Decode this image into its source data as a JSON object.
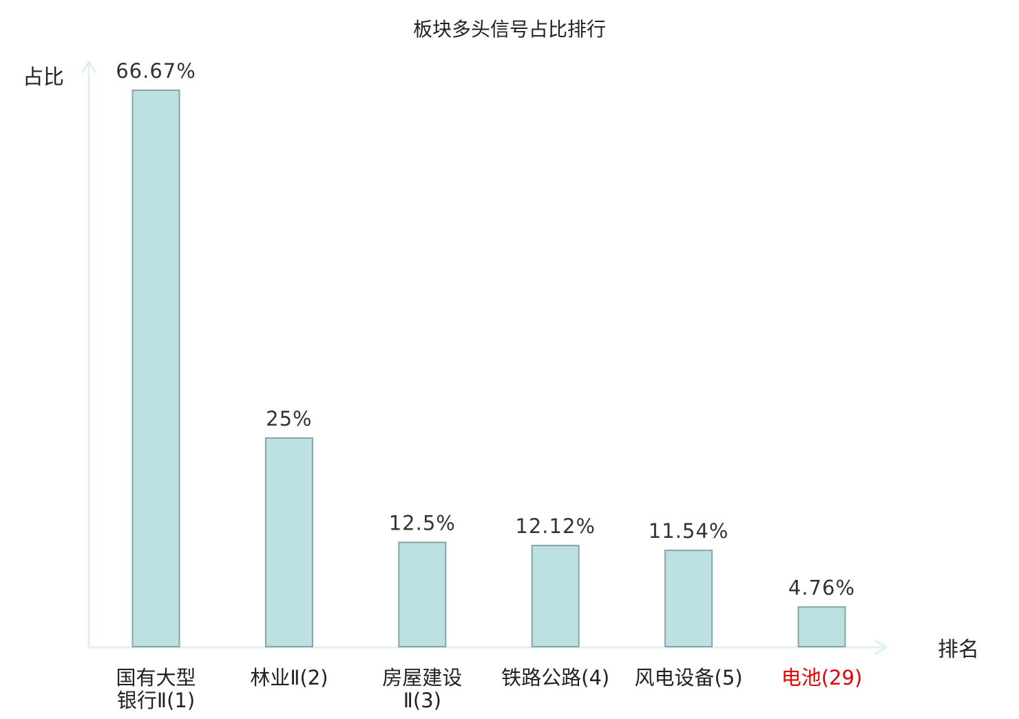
{
  "chart_data": {
    "type": "bar",
    "title": "板块多头信号占比排行",
    "xlabel": "排名",
    "ylabel": "占比",
    "categories": [
      {
        "lines": [
          "国有大型",
          "银行Ⅱ(1)"
        ],
        "highlight": false
      },
      {
        "lines": [
          "林业Ⅱ(2)"
        ],
        "highlight": false
      },
      {
        "lines": [
          "房屋建设",
          "Ⅱ(3)"
        ],
        "highlight": false
      },
      {
        "lines": [
          "铁路公路(4)"
        ],
        "highlight": false
      },
      {
        "lines": [
          "风电设备(5)"
        ],
        "highlight": false
      },
      {
        "lines": [
          "电池(29)"
        ],
        "highlight": true
      }
    ],
    "values": [
      66.67,
      25,
      12.5,
      12.12,
      11.54,
      4.76
    ],
    "value_labels": [
      "66.67%",
      "25%",
      "12.5%",
      "12.12%",
      "11.54%",
      "4.76%"
    ],
    "ylim": [
      0,
      66.67
    ],
    "grid": false,
    "colors": {
      "bar_fill": "#bde0e3",
      "bar_stroke": "#86a3a6",
      "axis": "#e0f2ef",
      "text": "#333333",
      "highlight_text": "#e60000",
      "title_text": "#222222"
    }
  }
}
